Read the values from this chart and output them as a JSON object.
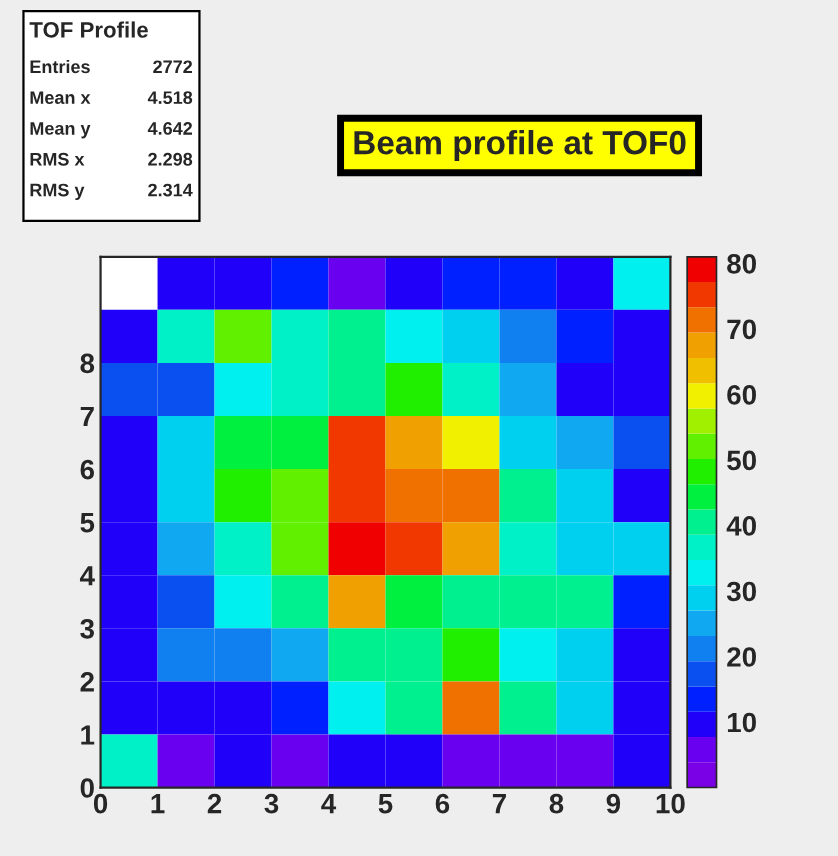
{
  "chart_data": {
    "type": "heatmap",
    "title": "Beam profile at TOF0",
    "annotations": [
      "TOF Profile",
      "Entries",
      "2772",
      "Mean x",
      "4.518",
      "Mean y",
      "4.642",
      "RMS x",
      "2.298",
      "RMS y",
      "2.314"
    ],
    "xlim": [
      0,
      10
    ],
    "xticks": [
      0,
      1,
      2,
      3,
      4,
      5,
      6,
      7,
      8,
      9,
      10
    ],
    "ylim": [
      0,
      10
    ],
    "yticks": [
      0,
      1,
      2,
      3,
      4,
      5,
      6,
      7,
      8
    ],
    "clim": [
      0,
      81
    ],
    "cticks": [
      10,
      20,
      30,
      40,
      50,
      60,
      70,
      80
    ],
    "cells": [
      [
        null,
        10,
        10,
        12,
        6,
        10,
        12,
        14,
        10,
        32
      ],
      [
        8,
        36,
        52,
        36,
        42,
        32,
        28,
        22,
        12,
        8
      ],
      [
        16,
        16,
        32,
        38,
        42,
        50,
        36,
        24,
        10,
        10
      ],
      [
        8,
        30,
        44,
        44,
        74,
        66,
        60,
        30,
        24,
        16
      ],
      [
        10,
        30,
        48,
        52,
        74,
        70,
        70,
        40,
        30,
        10
      ],
      [
        10,
        24,
        38,
        52,
        78,
        74,
        66,
        36,
        30,
        30
      ],
      [
        8,
        18,
        32,
        42,
        66,
        46,
        42,
        40,
        42,
        12
      ],
      [
        8,
        20,
        20,
        24,
        40,
        42,
        48,
        32,
        30,
        8
      ],
      [
        8,
        9,
        9,
        12,
        32,
        42,
        70,
        42,
        30,
        8
      ],
      [
        38,
        6,
        10,
        6,
        10,
        10,
        6,
        6,
        6,
        8
      ]
    ]
  }
}
